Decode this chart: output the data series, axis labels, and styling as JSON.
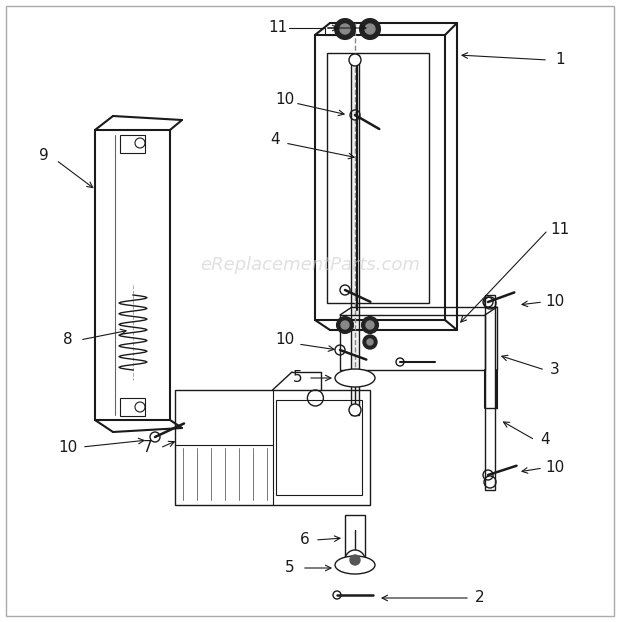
{
  "watermark": "eReplacementParts.com",
  "watermark_color": "#cccccc",
  "background_color": "#ffffff",
  "line_color": "#1a1a1a",
  "figsize": [
    6.2,
    6.22
  ],
  "dpi": 100
}
